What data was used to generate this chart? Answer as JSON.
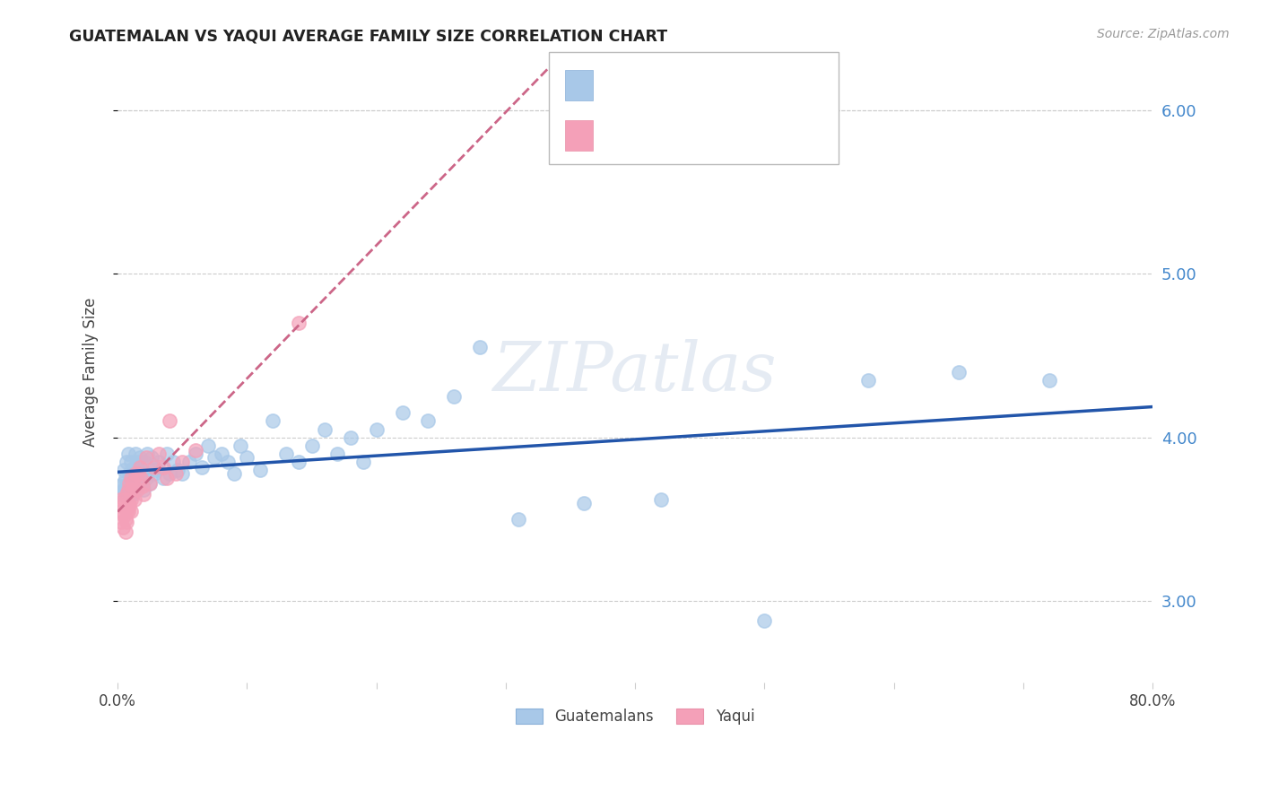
{
  "title": "GUATEMALAN VS YAQUI AVERAGE FAMILY SIZE CORRELATION CHART",
  "source": "Source: ZipAtlas.com",
  "ylabel": "Average Family Size",
  "xlim": [
    0.0,
    0.8
  ],
  "ylim": [
    2.5,
    6.3
  ],
  "yticks": [
    3.0,
    4.0,
    5.0,
    6.0
  ],
  "xticks": [
    0.0,
    0.1,
    0.2,
    0.3,
    0.4,
    0.5,
    0.6,
    0.7,
    0.8
  ],
  "xtick_labels": [
    "0.0%",
    "",
    "",
    "",
    "",
    "",
    "",
    "",
    "80.0%"
  ],
  "color_guatemalan": "#a8c8e8",
  "color_yaqui": "#f4a0b8",
  "color_line_guatemalan": "#2255aa",
  "color_line_yaqui": "#cc6688",
  "color_axis_right": "#4488cc",
  "color_grid": "#cccccc",
  "guatemalan_x": [
    0.002,
    0.003,
    0.004,
    0.005,
    0.005,
    0.006,
    0.007,
    0.007,
    0.008,
    0.008,
    0.009,
    0.009,
    0.01,
    0.01,
    0.01,
    0.011,
    0.011,
    0.012,
    0.012,
    0.013,
    0.013,
    0.014,
    0.014,
    0.015,
    0.015,
    0.016,
    0.016,
    0.017,
    0.017,
    0.018,
    0.019,
    0.02,
    0.021,
    0.022,
    0.023,
    0.025,
    0.026,
    0.028,
    0.03,
    0.032,
    0.035,
    0.038,
    0.04,
    0.043,
    0.046,
    0.05,
    0.055,
    0.06,
    0.065,
    0.07,
    0.075,
    0.08,
    0.085,
    0.09,
    0.095,
    0.1,
    0.11,
    0.12,
    0.13,
    0.14,
    0.15,
    0.16,
    0.17,
    0.18,
    0.19,
    0.2,
    0.22,
    0.24,
    0.26,
    0.28,
    0.31,
    0.36,
    0.42,
    0.5,
    0.58,
    0.65,
    0.72
  ],
  "guatemalan_y": [
    3.7,
    3.65,
    3.72,
    3.68,
    3.8,
    3.75,
    3.7,
    3.85,
    3.72,
    3.9,
    3.68,
    3.78,
    3.65,
    3.75,
    3.85,
    3.7,
    3.8,
    3.65,
    3.78,
    3.72,
    3.82,
    3.68,
    3.9,
    3.75,
    3.85,
    3.7,
    3.8,
    3.72,
    3.88,
    3.75,
    3.8,
    3.68,
    3.85,
    3.75,
    3.9,
    3.72,
    3.88,
    3.78,
    3.8,
    3.85,
    3.75,
    3.9,
    3.78,
    3.85,
    3.8,
    3.78,
    3.85,
    3.9,
    3.82,
    3.95,
    3.88,
    3.9,
    3.85,
    3.78,
    3.95,
    3.88,
    3.8,
    4.1,
    3.9,
    3.85,
    3.95,
    4.05,
    3.9,
    4.0,
    3.85,
    4.05,
    4.15,
    4.1,
    4.25,
    4.55,
    3.5,
    3.6,
    3.62,
    2.88,
    4.35,
    4.4,
    4.35
  ],
  "yaqui_x": [
    0.002,
    0.003,
    0.003,
    0.004,
    0.004,
    0.005,
    0.005,
    0.006,
    0.006,
    0.007,
    0.007,
    0.007,
    0.008,
    0.008,
    0.008,
    0.009,
    0.009,
    0.01,
    0.01,
    0.01,
    0.011,
    0.012,
    0.013,
    0.014,
    0.015,
    0.016,
    0.017,
    0.018,
    0.019,
    0.02,
    0.022,
    0.025,
    0.028,
    0.032,
    0.035,
    0.038,
    0.04,
    0.045,
    0.05,
    0.06,
    0.14
  ],
  "yaqui_y": [
    3.62,
    3.55,
    3.48,
    3.58,
    3.45,
    3.52,
    3.62,
    3.5,
    3.42,
    3.55,
    3.48,
    3.65,
    3.55,
    3.6,
    3.68,
    3.58,
    3.72,
    3.62,
    3.55,
    3.75,
    3.68,
    3.72,
    3.62,
    3.78,
    3.68,
    3.78,
    3.82,
    3.75,
    3.7,
    3.65,
    3.88,
    3.72,
    3.82,
    3.9,
    3.82,
    3.75,
    4.1,
    3.78,
    3.85,
    3.92,
    4.7
  ]
}
